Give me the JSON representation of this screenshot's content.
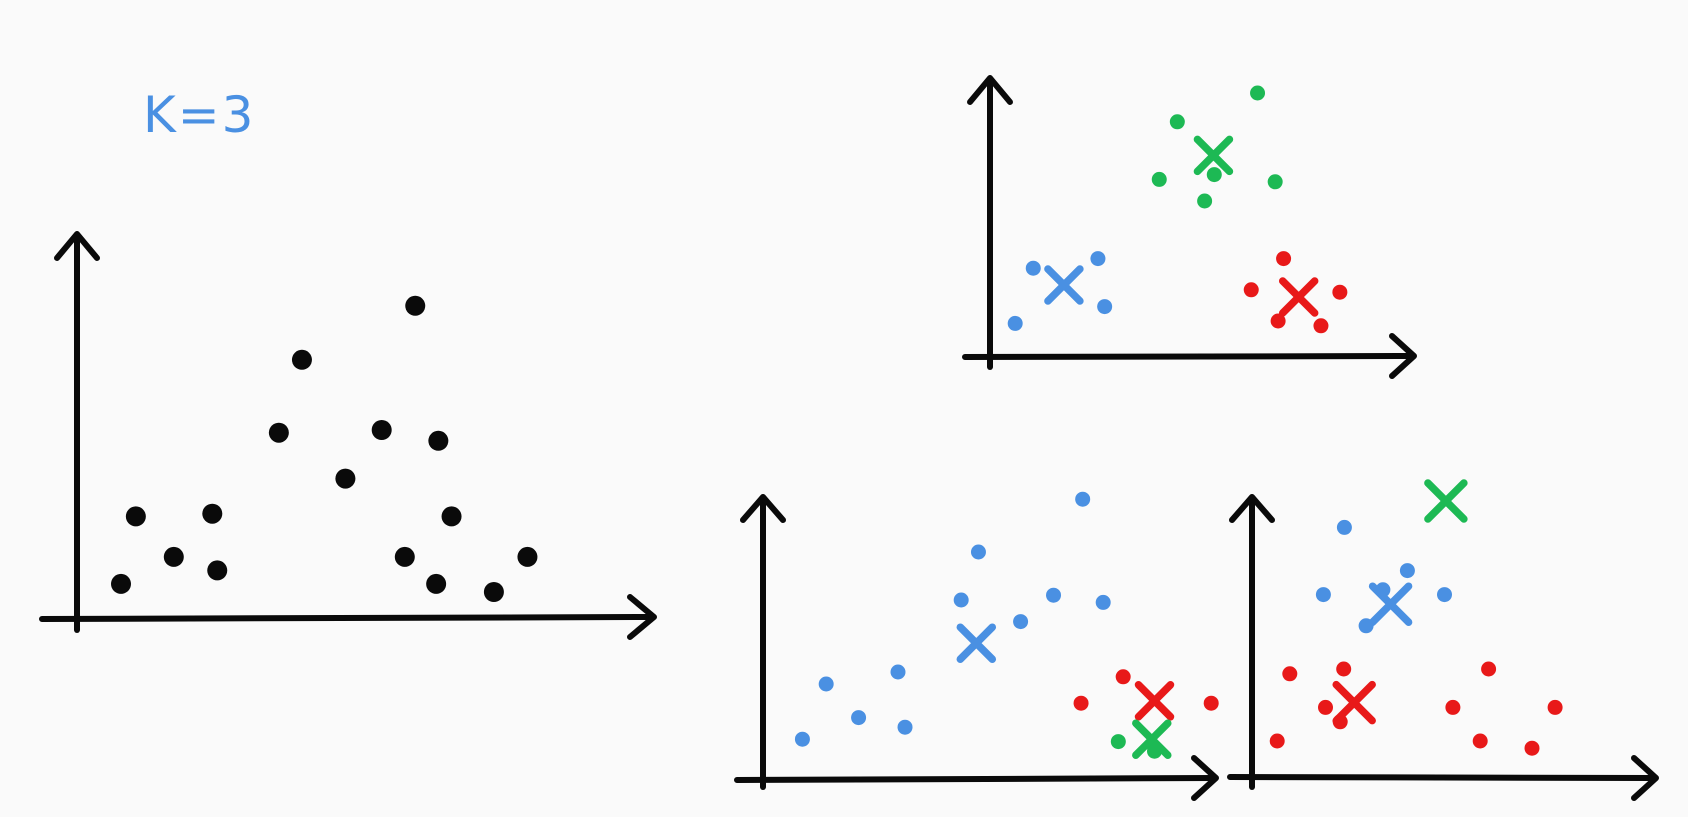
{
  "label": "K=3",
  "colors": {
    "ink": "#0a0a0a",
    "blue": "#4a90e2",
    "green": "#1db954",
    "red": "#e81919"
  },
  "panels": [
    {
      "name": "unclustered",
      "points": [
        {
          "x": 8.0,
          "y": 1.3,
          "c": "ink"
        },
        {
          "x": 10.7,
          "y": 3.8,
          "c": "ink"
        },
        {
          "x": 17.6,
          "y": 2.3,
          "c": "ink"
        },
        {
          "x": 24.6,
          "y": 3.9,
          "c": "ink"
        },
        {
          "x": 25.5,
          "y": 1.8,
          "c": "ink"
        },
        {
          "x": 36.7,
          "y": 6.9,
          "c": "ink"
        },
        {
          "x": 40.9,
          "y": 9.6,
          "c": "ink"
        },
        {
          "x": 48.8,
          "y": 5.2,
          "c": "ink"
        },
        {
          "x": 55.4,
          "y": 7.0,
          "c": "ink"
        },
        {
          "x": 59.6,
          "y": 2.3,
          "c": "ink"
        },
        {
          "x": 61.5,
          "y": 11.6,
          "c": "ink"
        },
        {
          "x": 65.3,
          "y": 1.3,
          "c": "ink"
        },
        {
          "x": 65.7,
          "y": 6.6,
          "c": "ink"
        },
        {
          "x": 68.1,
          "y": 3.8,
          "c": "ink"
        },
        {
          "x": 75.8,
          "y": 1.0,
          "c": "ink"
        },
        {
          "x": 81.9,
          "y": 2.3,
          "c": "ink"
        }
      ],
      "centroids": []
    },
    {
      "name": "good-clustering",
      "points": [
        {
          "x": 6.0,
          "y": 1.4,
          "c": "blue"
        },
        {
          "x": 10.3,
          "y": 3.7,
          "c": "blue"
        },
        {
          "x": 25.7,
          "y": 4.1,
          "c": "blue"
        },
        {
          "x": 27.3,
          "y": 2.1,
          "c": "blue"
        },
        {
          "x": 40.3,
          "y": 7.4,
          "c": "green"
        },
        {
          "x": 44.6,
          "y": 9.8,
          "c": "green"
        },
        {
          "x": 51.1,
          "y": 6.5,
          "c": "green"
        },
        {
          "x": 53.4,
          "y": 7.6,
          "c": "green"
        },
        {
          "x": 63.7,
          "y": 11.0,
          "c": "green"
        },
        {
          "x": 67.9,
          "y": 7.3,
          "c": "green"
        },
        {
          "x": 62.2,
          "y": 2.8,
          "c": "red"
        },
        {
          "x": 68.6,
          "y": 1.5,
          "c": "red"
        },
        {
          "x": 69.9,
          "y": 4.1,
          "c": "red"
        },
        {
          "x": 78.8,
          "y": 1.3,
          "c": "red"
        },
        {
          "x": 83.3,
          "y": 2.7,
          "c": "red"
        }
      ],
      "centroids": [
        {
          "x": 17.6,
          "y": 3.0,
          "c": "blue"
        },
        {
          "x": 53.2,
          "y": 8.4,
          "c": "green"
        },
        {
          "x": 73.5,
          "y": 2.5,
          "c": "red"
        }
      ]
    },
    {
      "name": "poor-clustering-1",
      "points": [
        {
          "x": 7.3,
          "y": 1.7,
          "c": "blue"
        },
        {
          "x": 11.7,
          "y": 4.0,
          "c": "blue"
        },
        {
          "x": 17.7,
          "y": 2.6,
          "c": "blue"
        },
        {
          "x": 25.0,
          "y": 4.5,
          "c": "blue"
        },
        {
          "x": 26.3,
          "y": 2.2,
          "c": "blue"
        },
        {
          "x": 36.7,
          "y": 7.5,
          "c": "blue"
        },
        {
          "x": 39.9,
          "y": 9.5,
          "c": "blue"
        },
        {
          "x": 47.7,
          "y": 6.6,
          "c": "blue"
        },
        {
          "x": 53.8,
          "y": 7.7,
          "c": "blue"
        },
        {
          "x": 59.2,
          "y": 11.7,
          "c": "blue"
        },
        {
          "x": 63.0,
          "y": 7.4,
          "c": "blue"
        },
        {
          "x": 58.9,
          "y": 3.2,
          "c": "red"
        },
        {
          "x": 66.7,
          "y": 4.3,
          "c": "red"
        },
        {
          "x": 83.0,
          "y": 3.2,
          "c": "red"
        },
        {
          "x": 65.8,
          "y": 1.6,
          "c": "green"
        },
        {
          "x": 72.5,
          "y": 1.2,
          "c": "green"
        }
      ],
      "centroids": [
        {
          "x": 39.5,
          "y": 5.7,
          "c": "blue"
        },
        {
          "x": 72.5,
          "y": 3.3,
          "c": "red"
        },
        {
          "x": 72.0,
          "y": 1.7,
          "c": "green"
        }
      ]
    },
    {
      "name": "poor-clustering-2",
      "points": [
        {
          "x": 10.2,
          "y": 7.6,
          "c": "blue"
        },
        {
          "x": 13.2,
          "y": 10.4,
          "c": "blue"
        },
        {
          "x": 16.3,
          "y": 6.3,
          "c": "blue"
        },
        {
          "x": 18.7,
          "y": 7.8,
          "c": "blue"
        },
        {
          "x": 22.2,
          "y": 8.6,
          "c": "blue"
        },
        {
          "x": 27.5,
          "y": 7.6,
          "c": "blue"
        },
        {
          "x": 3.6,
          "y": 1.5,
          "c": "red"
        },
        {
          "x": 5.4,
          "y": 4.3,
          "c": "red"
        },
        {
          "x": 10.5,
          "y": 2.9,
          "c": "red"
        },
        {
          "x": 12.6,
          "y": 2.3,
          "c": "red"
        },
        {
          "x": 13.1,
          "y": 4.5,
          "c": "red"
        },
        {
          "x": 28.7,
          "y": 2.9,
          "c": "red"
        },
        {
          "x": 32.6,
          "y": 1.5,
          "c": "red"
        },
        {
          "x": 33.8,
          "y": 4.5,
          "c": "red"
        },
        {
          "x": 40.0,
          "y": 1.2,
          "c": "red"
        },
        {
          "x": 43.3,
          "y": 2.9,
          "c": "red"
        }
      ],
      "centroids": [
        {
          "x": 19.8,
          "y": 7.2,
          "c": "blue"
        },
        {
          "x": 27.7,
          "y": 11.5,
          "c": "green"
        },
        {
          "x": 14.6,
          "y": 3.1,
          "c": "red"
        }
      ]
    }
  ]
}
